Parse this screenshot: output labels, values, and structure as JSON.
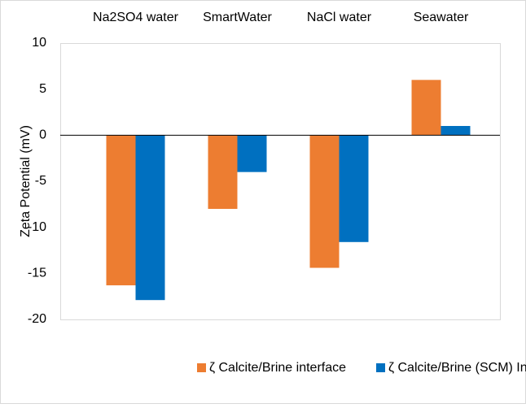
{
  "chart_data": {
    "type": "bar",
    "categories": [
      "Na2SO4 water",
      "SmartWater",
      "NaCl water",
      "Seawater"
    ],
    "y_label": "Zeta Potential (mV)",
    "series": [
      {
        "name": "ζ Calcite/Brine interface",
        "color": "#ed7d31",
        "values": [
          -16.3,
          -8,
          -14.4,
          6
        ]
      },
      {
        "name": "ζ Calcite/Brine (SCM) Interface",
        "color": "#0070c0",
        "values": [
          -17.9,
          -4,
          -11.6,
          1
        ]
      }
    ],
    "ylim": [
      -20,
      10
    ],
    "yticks": [
      -20,
      -15,
      -10,
      -5,
      0,
      5,
      10
    ],
    "grid": false,
    "legend": "bottom"
  }
}
